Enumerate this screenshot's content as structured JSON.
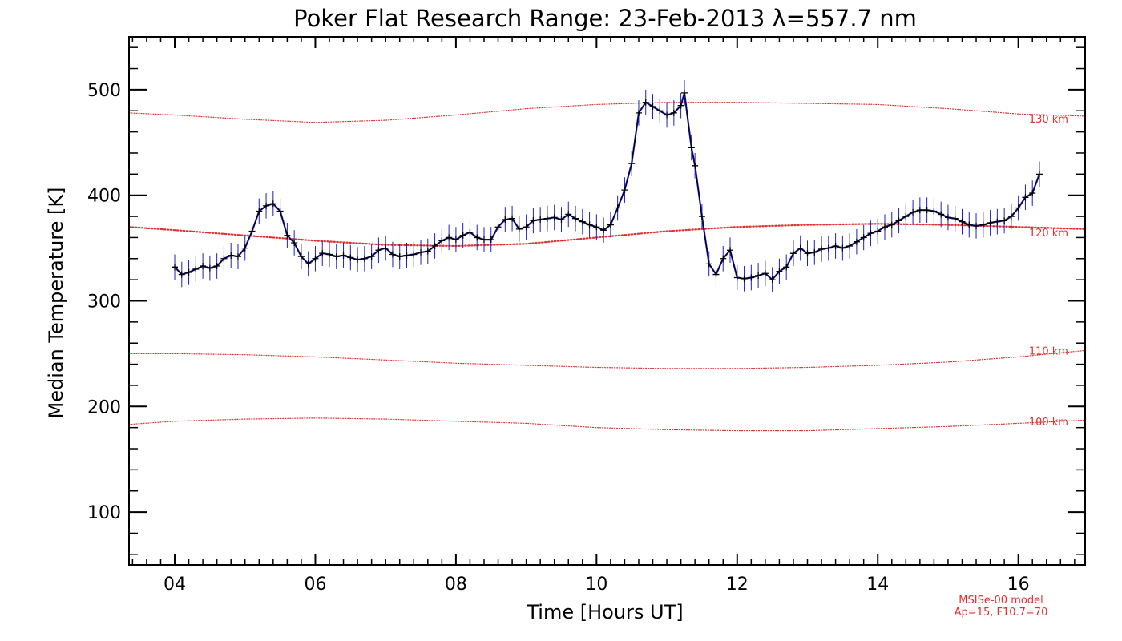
{
  "chart_data": {
    "type": "line",
    "title": "Poker Flat Research Range: 23-Feb-2013 λ=557.7 nm",
    "xlabel": "Time [Hours UT]",
    "ylabel": "Median Temperature [K]",
    "xlim": [
      3.35,
      16.95
    ],
    "ylim": [
      50,
      550
    ],
    "x_ticks": [
      4,
      6,
      8,
      10,
      12,
      14,
      16
    ],
    "x_tick_labels": [
      "04",
      "06",
      "08",
      "10",
      "12",
      "14",
      "16"
    ],
    "y_ticks": [
      100,
      200,
      300,
      400,
      500
    ],
    "y_tick_labels": [
      "100",
      "200",
      "300",
      "400",
      "500"
    ],
    "grid": false,
    "colors": {
      "data": "#000000",
      "error_bars": "#1f1fbf",
      "model": "#e03030"
    },
    "series": [
      {
        "name": "",
        "error": 12,
        "points": [
          [
            4.0,
            332
          ],
          [
            4.1,
            325
          ],
          [
            4.2,
            327
          ],
          [
            4.3,
            330
          ],
          [
            4.4,
            333
          ],
          [
            4.5,
            331
          ],
          [
            4.6,
            333
          ],
          [
            4.7,
            340
          ],
          [
            4.8,
            343
          ],
          [
            4.9,
            342
          ],
          [
            5.0,
            350
          ],
          [
            5.1,
            366
          ],
          [
            5.2,
            385
          ],
          [
            5.3,
            390
          ],
          [
            5.4,
            392
          ],
          [
            5.5,
            385
          ],
          [
            5.6,
            362
          ],
          [
            5.7,
            355
          ],
          [
            5.8,
            342
          ],
          [
            5.9,
            335
          ],
          [
            6.0,
            340
          ],
          [
            6.1,
            345
          ],
          [
            6.2,
            344
          ],
          [
            6.3,
            342
          ],
          [
            6.4,
            343
          ],
          [
            6.5,
            341
          ],
          [
            6.6,
            339
          ],
          [
            6.7,
            340
          ],
          [
            6.8,
            342
          ],
          [
            6.9,
            348
          ],
          [
            7.0,
            350
          ],
          [
            7.1,
            344
          ],
          [
            7.2,
            342
          ],
          [
            7.3,
            343
          ],
          [
            7.4,
            344
          ],
          [
            7.5,
            346
          ],
          [
            7.6,
            347
          ],
          [
            7.7,
            352
          ],
          [
            7.8,
            357
          ],
          [
            7.9,
            360
          ],
          [
            8.0,
            358
          ],
          [
            8.1,
            362
          ],
          [
            8.2,
            365
          ],
          [
            8.3,
            360
          ],
          [
            8.4,
            358
          ],
          [
            8.5,
            358
          ],
          [
            8.6,
            370
          ],
          [
            8.7,
            377
          ],
          [
            8.8,
            378
          ],
          [
            8.9,
            368
          ],
          [
            9.0,
            370
          ],
          [
            9.1,
            376
          ],
          [
            9.2,
            377
          ],
          [
            9.3,
            378
          ],
          [
            9.4,
            379
          ],
          [
            9.5,
            377
          ],
          [
            9.6,
            382
          ],
          [
            9.7,
            378
          ],
          [
            9.8,
            375
          ],
          [
            9.9,
            372
          ],
          [
            10.0,
            370
          ],
          [
            10.1,
            367
          ],
          [
            10.2,
            372
          ],
          [
            10.3,
            388
          ],
          [
            10.4,
            405
          ],
          [
            10.5,
            430
          ],
          [
            10.6,
            478
          ],
          [
            10.7,
            488
          ],
          [
            10.8,
            484
          ],
          [
            10.9,
            480
          ],
          [
            11.0,
            476
          ],
          [
            11.1,
            478
          ],
          [
            11.2,
            485
          ],
          [
            11.25,
            497
          ],
          [
            11.35,
            445
          ],
          [
            11.4,
            428
          ],
          [
            11.5,
            380
          ],
          [
            11.6,
            335
          ],
          [
            11.7,
            325
          ],
          [
            11.8,
            340
          ],
          [
            11.9,
            348
          ],
          [
            12.0,
            322
          ],
          [
            12.1,
            321
          ],
          [
            12.2,
            322
          ],
          [
            12.3,
            324
          ],
          [
            12.4,
            326
          ],
          [
            12.5,
            320
          ],
          [
            12.6,
            328
          ],
          [
            12.7,
            332
          ],
          [
            12.8,
            345
          ],
          [
            12.9,
            350
          ],
          [
            13.0,
            345
          ],
          [
            13.1,
            346
          ],
          [
            13.2,
            349
          ],
          [
            13.3,
            350
          ],
          [
            13.4,
            352
          ],
          [
            13.5,
            350
          ],
          [
            13.6,
            352
          ],
          [
            13.7,
            356
          ],
          [
            13.8,
            360
          ],
          [
            13.9,
            364
          ],
          [
            14.0,
            366
          ],
          [
            14.1,
            370
          ],
          [
            14.2,
            372
          ],
          [
            14.3,
            376
          ],
          [
            14.4,
            380
          ],
          [
            14.5,
            384
          ],
          [
            14.6,
            386
          ],
          [
            14.7,
            386
          ],
          [
            14.8,
            385
          ],
          [
            14.9,
            382
          ],
          [
            15.0,
            379
          ],
          [
            15.1,
            378
          ],
          [
            15.2,
            375
          ],
          [
            15.3,
            372
          ],
          [
            15.4,
            371
          ],
          [
            15.5,
            372
          ],
          [
            15.6,
            374
          ],
          [
            15.7,
            375
          ],
          [
            15.8,
            376
          ],
          [
            15.9,
            380
          ],
          [
            16.0,
            388
          ],
          [
            16.1,
            398
          ],
          [
            16.2,
            402
          ],
          [
            16.3,
            420
          ]
        ]
      }
    ],
    "model": {
      "label": "MSISe-00 model",
      "params": "Ap=15, F10.7=70",
      "lines": [
        {
          "label": "130 km",
          "label_x": 16.15,
          "label_y": 469,
          "points": [
            [
              3.35,
              478
            ],
            [
              4,
              476
            ],
            [
              5,
              472
            ],
            [
              6,
              469
            ],
            [
              7,
              471
            ],
            [
              8,
              476
            ],
            [
              9,
              482
            ],
            [
              10,
              486
            ],
            [
              11,
              488
            ],
            [
              12,
              488
            ],
            [
              13,
              487
            ],
            [
              14,
              486
            ],
            [
              15,
              482
            ],
            [
              16,
              477
            ],
            [
              16.95,
              475
            ]
          ]
        },
        {
          "label": "120 km",
          "label_x": 16.15,
          "label_y": 361,
          "points": [
            [
              3.35,
              370
            ],
            [
              4,
              367
            ],
            [
              5,
              362
            ],
            [
              6,
              357
            ],
            [
              7,
              353
            ],
            [
              8,
              352
            ],
            [
              9,
              354
            ],
            [
              10,
              360
            ],
            [
              11,
              366
            ],
            [
              12,
              370
            ],
            [
              13,
              372
            ],
            [
              14,
              373
            ],
            [
              15,
              372
            ],
            [
              16,
              370
            ],
            [
              16.95,
              368
            ]
          ]
        },
        {
          "label": "110 km",
          "label_x": 16.15,
          "label_y": 249,
          "points": [
            [
              3.35,
              250
            ],
            [
              4,
              250
            ],
            [
              5,
              249
            ],
            [
              6,
              247
            ],
            [
              7,
              244
            ],
            [
              8,
              241
            ],
            [
              9,
              239
            ],
            [
              10,
              237
            ],
            [
              11,
              236
            ],
            [
              12,
              236
            ],
            [
              13,
              237
            ],
            [
              14,
              239
            ],
            [
              15,
              242
            ],
            [
              16,
              247
            ],
            [
              16.95,
              253
            ]
          ]
        },
        {
          "label": "100 km",
          "label_x": 16.15,
          "label_y": 182,
          "points": [
            [
              3.35,
              183
            ],
            [
              4,
              186
            ],
            [
              5,
              188
            ],
            [
              6,
              189
            ],
            [
              7,
              188
            ],
            [
              8,
              186
            ],
            [
              9,
              184
            ],
            [
              10,
              180
            ],
            [
              11,
              178
            ],
            [
              12,
              177
            ],
            [
              13,
              177
            ],
            [
              14,
              179
            ],
            [
              15,
              181
            ],
            [
              16,
              184
            ],
            [
              16.95,
              187
            ]
          ]
        }
      ]
    }
  }
}
